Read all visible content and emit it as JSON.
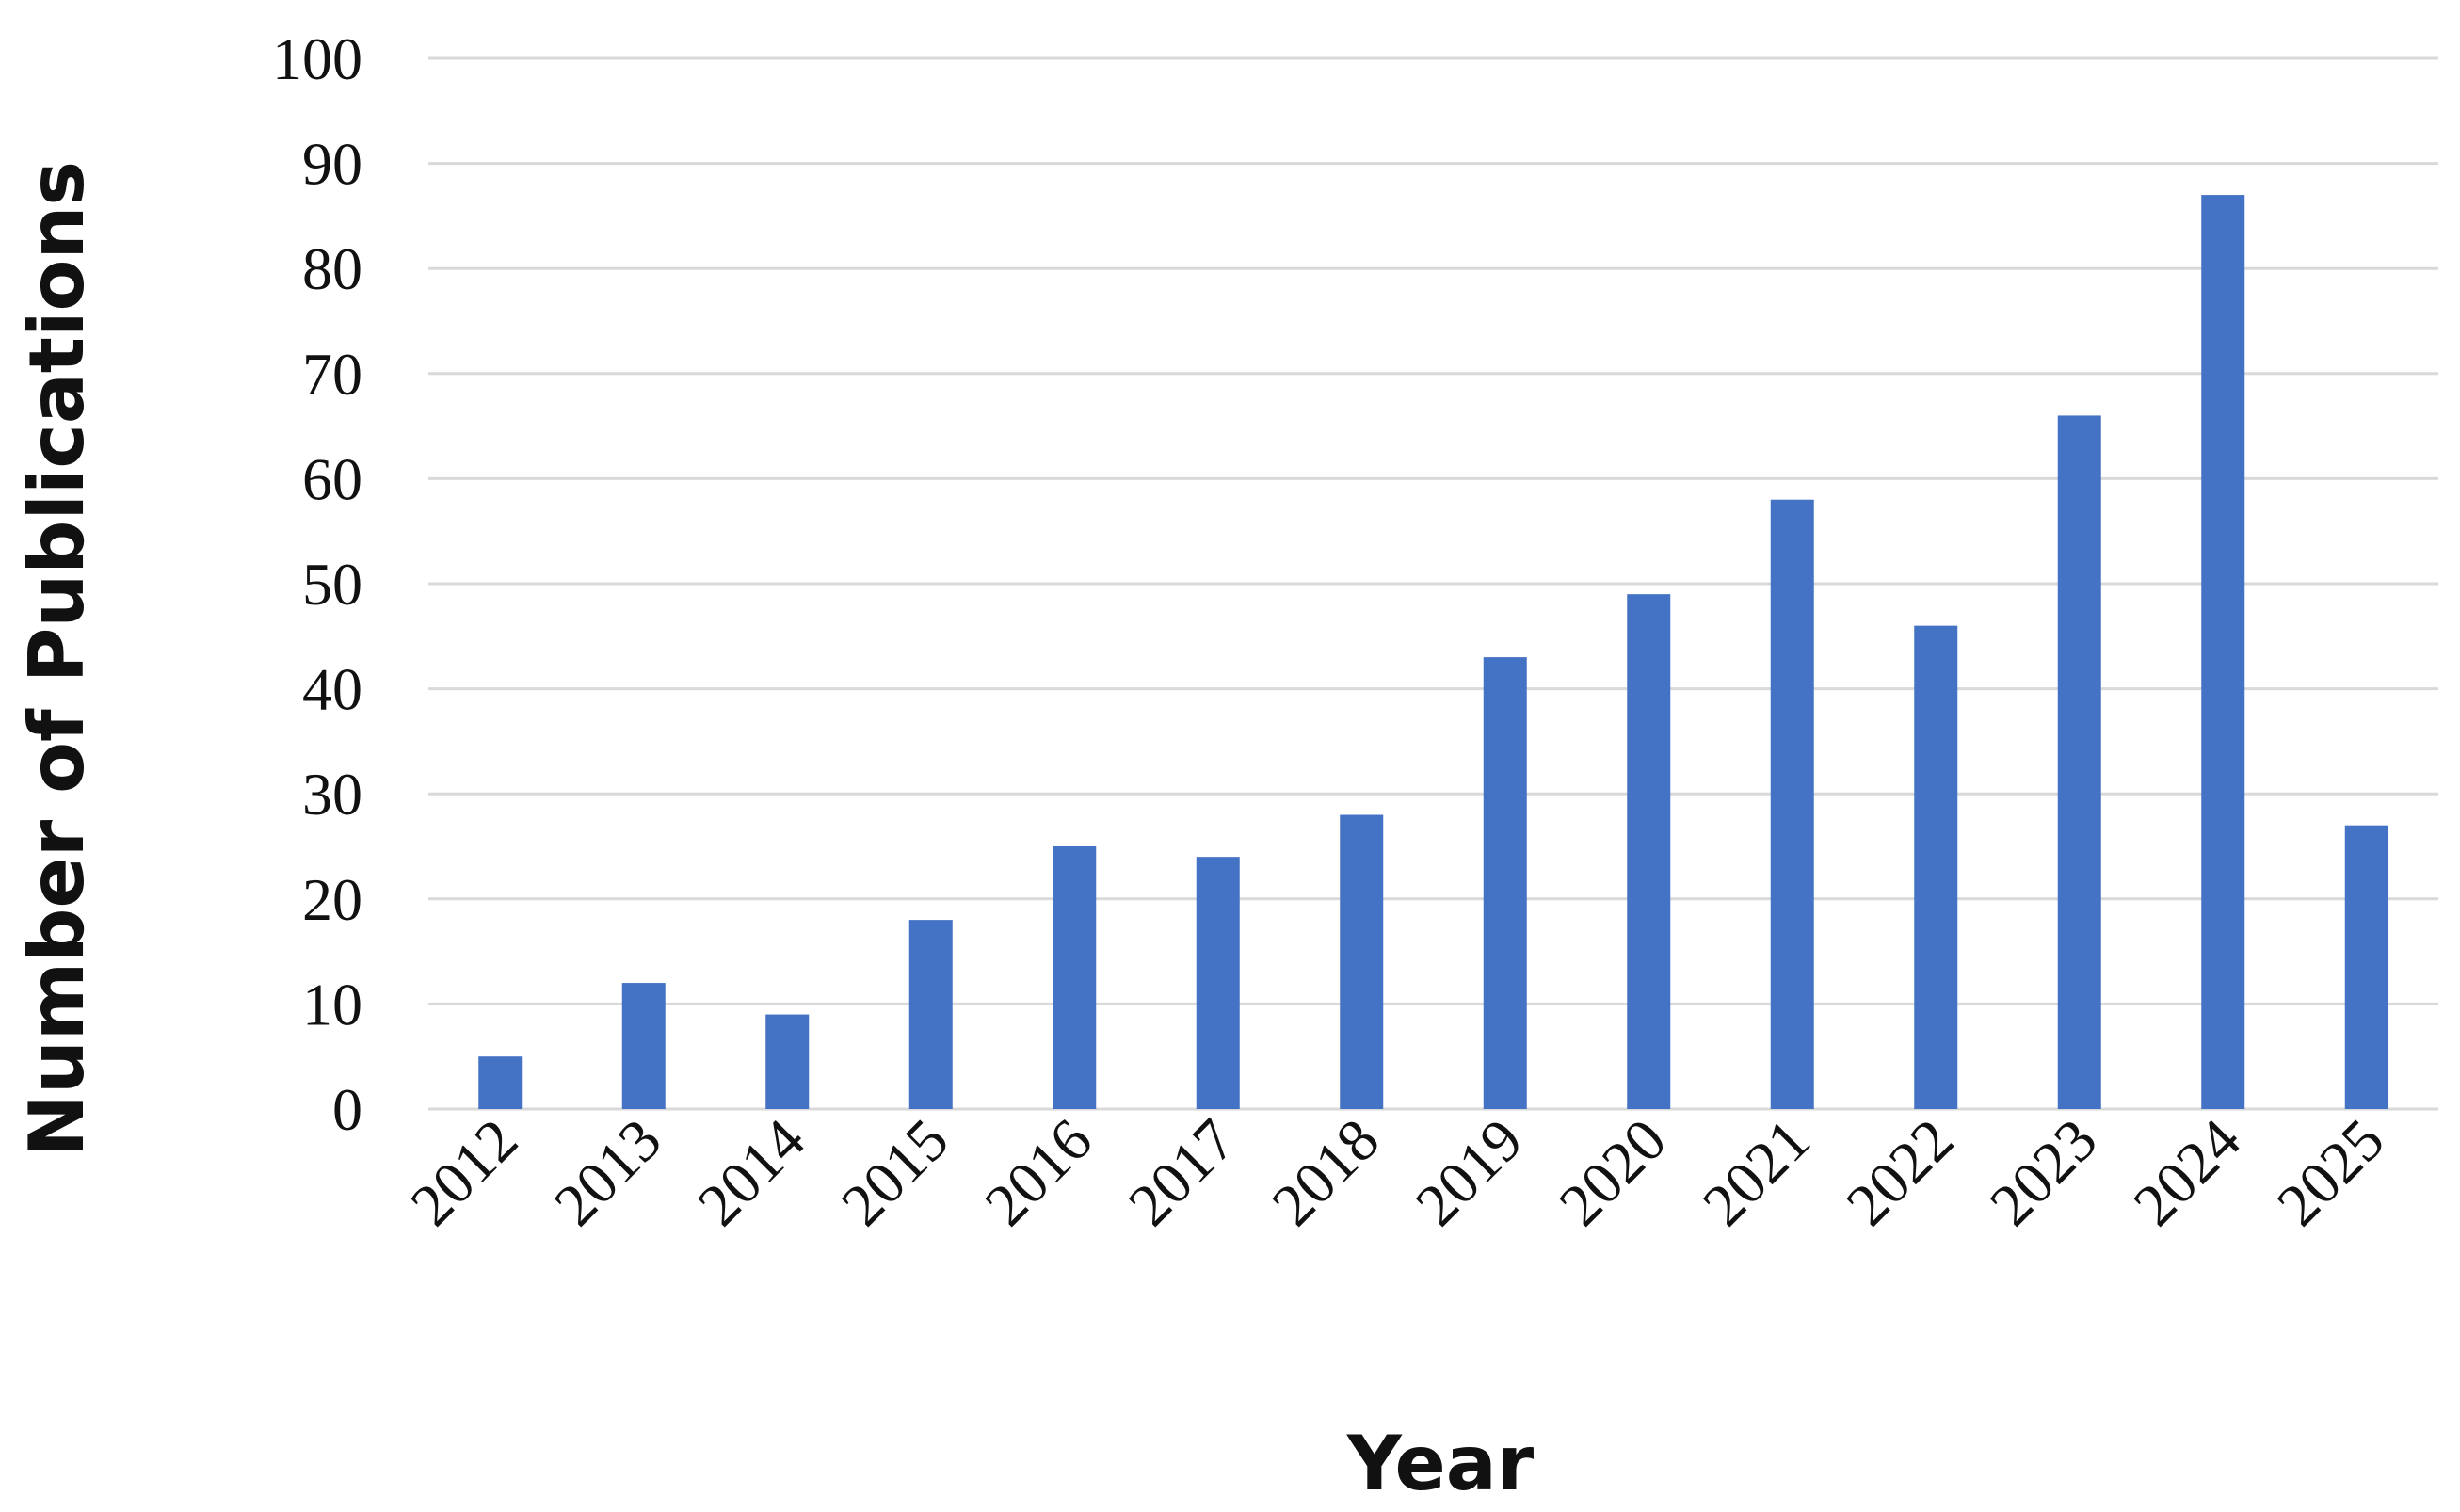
{
  "chart_data": {
    "type": "bar",
    "title": "",
    "xlabel": "Year",
    "ylabel": "Number of Publications",
    "categories": [
      "2012",
      "2013",
      "2014",
      "2015",
      "2016",
      "2017",
      "2018",
      "2019",
      "2020",
      "2021",
      "2022",
      "2023",
      "2024",
      "2025"
    ],
    "values": [
      5,
      12,
      9,
      18,
      25,
      24,
      28,
      43,
      49,
      58,
      46,
      66,
      87,
      27
    ],
    "ylim": [
      0,
      100
    ],
    "yticks": [
      0,
      10,
      20,
      30,
      40,
      50,
      60,
      70,
      80,
      90,
      100
    ],
    "grid": true,
    "legend": "none",
    "bar_color": "#4472c4",
    "grid_color": "#d9d9d9"
  }
}
